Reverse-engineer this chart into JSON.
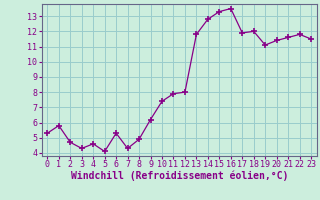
{
  "x": [
    0,
    1,
    2,
    3,
    4,
    5,
    6,
    7,
    8,
    9,
    10,
    11,
    12,
    13,
    14,
    15,
    16,
    17,
    18,
    19,
    20,
    21,
    22,
    23
  ],
  "y": [
    5.3,
    5.8,
    4.7,
    4.3,
    4.6,
    4.1,
    5.3,
    4.3,
    4.9,
    6.2,
    7.4,
    7.9,
    8.0,
    11.8,
    12.8,
    13.3,
    13.5,
    11.9,
    12.0,
    11.1,
    11.4,
    11.6,
    11.8,
    11.5
  ],
  "line_color": "#880088",
  "marker": "+",
  "markersize": 4,
  "markeredgewidth": 1.2,
  "linewidth": 0.9,
  "bg_color": "#cceedd",
  "grid_color": "#99cccc",
  "xlabel": "Windchill (Refroidissement éolien,°C)",
  "xlabel_color": "#880088",
  "ylim_min": 3.8,
  "ylim_max": 13.8,
  "yticks": [
    4,
    5,
    6,
    7,
    8,
    9,
    10,
    11,
    12,
    13
  ],
  "xticks": [
    0,
    1,
    2,
    3,
    4,
    5,
    6,
    7,
    8,
    9,
    10,
    11,
    12,
    13,
    14,
    15,
    16,
    17,
    18,
    19,
    20,
    21,
    22,
    23
  ],
  "tick_color": "#880088",
  "tick_fontsize": 6,
  "xlabel_fontsize": 7,
  "spine_color": "#666688"
}
